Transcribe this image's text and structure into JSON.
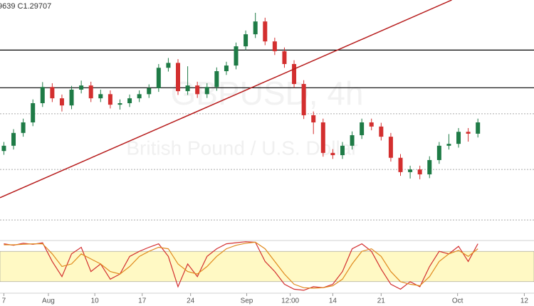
{
  "chart_data": [
    {
      "type": "candlestick",
      "title": "9639 C1.29707",
      "watermark": "GBPUSD, 4h",
      "subtitle": "British Pound / U.S. Dollar",
      "xlim": [
        -0.4,
        54.8
      ],
      "ylim": [
        1.2663,
        1.3296
      ],
      "up_color": "#1e7b46",
      "down_color": "#d32f2f",
      "open": [
        1.2895,
        1.2909,
        1.2943,
        1.2971,
        1.3022,
        1.3065,
        1.3035,
        1.3016,
        1.3058,
        1.3069,
        1.3035,
        1.3046,
        1.3018,
        1.3022,
        1.3035,
        1.3046,
        1.3062,
        1.3116,
        1.3129,
        1.3054,
        1.3069,
        1.3046,
        1.3065,
        1.3107,
        1.3122,
        1.3173,
        1.3205,
        1.3239,
        1.3186,
        1.316,
        1.3126,
        1.3073,
        1.299,
        1.2971,
        1.289,
        1.2884,
        1.2909,
        1.2937,
        1.2971,
        1.296,
        1.2933,
        1.2877,
        1.2839,
        1.2846,
        1.2833,
        1.2871,
        1.2909,
        1.2914,
        1.2946,
        1.2941
      ],
      "high": [
        1.2919,
        1.2953,
        1.2981,
        1.3032,
        1.3078,
        1.3075,
        1.3045,
        1.3068,
        1.3082,
        1.3079,
        1.3058,
        1.3056,
        1.3032,
        1.3045,
        1.3056,
        1.3072,
        1.3126,
        1.3142,
        1.3139,
        1.312,
        1.3079,
        1.3075,
        1.3117,
        1.3132,
        1.3183,
        1.3215,
        1.3262,
        1.3249,
        1.3196,
        1.317,
        1.3136,
        1.3083,
        1.3,
        1.2981,
        1.29,
        1.2919,
        1.2947,
        1.2981,
        1.2981,
        1.297,
        1.2943,
        1.2887,
        1.2856,
        1.2856,
        1.2881,
        1.2919,
        1.294,
        1.2956,
        1.2956,
        1.2981
      ],
      "low": [
        1.2885,
        1.2899,
        1.2933,
        1.2961,
        1.3012,
        1.3025,
        1.3,
        1.3006,
        1.3048,
        1.3025,
        1.3025,
        1.3008,
        1.3005,
        1.3012,
        1.3025,
        1.3036,
        1.3052,
        1.3106,
        1.3044,
        1.3044,
        1.3036,
        1.3036,
        1.3055,
        1.3097,
        1.3112,
        1.3163,
        1.3195,
        1.3176,
        1.315,
        1.3116,
        1.3063,
        1.298,
        1.294,
        1.288,
        1.2874,
        1.2874,
        1.2899,
        1.2927,
        1.295,
        1.2923,
        1.2867,
        1.2829,
        1.2822,
        1.282,
        1.2823,
        1.2861,
        1.2899,
        1.2904,
        1.292,
        1.2931
      ],
      "close": [
        1.2909,
        1.2943,
        1.2971,
        1.3022,
        1.3065,
        1.3035,
        1.3016,
        1.3058,
        1.3069,
        1.3035,
        1.3046,
        1.3018,
        1.3022,
        1.3035,
        1.3046,
        1.3062,
        1.3116,
        1.3129,
        1.3054,
        1.3069,
        1.3046,
        1.3065,
        1.3107,
        1.3122,
        1.3173,
        1.3205,
        1.3239,
        1.3186,
        1.316,
        1.3126,
        1.3073,
        1.299,
        1.2971,
        1.289,
        1.2884,
        1.2909,
        1.2937,
        1.2971,
        1.296,
        1.2933,
        1.2877,
        1.2839,
        1.2846,
        1.2833,
        1.2871,
        1.2909,
        1.2914,
        1.2946,
        1.2941,
        1.2971
      ],
      "levels": [
        1.3163,
        1.3063
      ],
      "level_color": "#000000",
      "dotted_levels": [
        1.2994,
        1.2846,
        1.2712
      ],
      "trendline": {
        "x": [
          -0.4,
          46.3
        ],
        "y": [
          1.2771,
          1.3296
        ],
        "color": "#b71c1c"
      }
    },
    {
      "type": "line",
      "xlim": [
        -0.4,
        54.8
      ],
      "ylim": [
        0,
        100
      ],
      "band": [
        20,
        80
      ],
      "band_color": "#fff9c4",
      "xticks": [
        {
          "value": 0,
          "label": "7"
        },
        {
          "value": 4.6,
          "label": "Aug"
        },
        {
          "value": 9.4,
          "label": "10"
        },
        {
          "value": 14.3,
          "label": "17"
        },
        {
          "value": 19.3,
          "label": "24"
        },
        {
          "value": 25.1,
          "label": "Sep"
        },
        {
          "value": 29.6,
          "label": "12:00"
        },
        {
          "value": 34.0,
          "label": "14"
        },
        {
          "value": 39.0,
          "label": "21"
        },
        {
          "value": 46.9,
          "label": "Oct"
        },
        {
          "value": 53.8,
          "label": "12"
        }
      ],
      "series": [
        {
          "color": "#d32f2f",
          "values": [
            95,
            92,
            96,
            94,
            97,
            60,
            30,
            75,
            88,
            40,
            55,
            25,
            35,
            70,
            80,
            88,
            95,
            70,
            10,
            55,
            30,
            70,
            85,
            95,
            97,
            99,
            98,
            60,
            40,
            15,
            5,
            3,
            10,
            8,
            15,
            40,
            85,
            95,
            80,
            45,
            15,
            5,
            20,
            10,
            50,
            80,
            75,
            90,
            60,
            95
          ]
        },
        {
          "color": "#e08a1e",
          "values": [
            93,
            93,
            94,
            95,
            95,
            75,
            50,
            55,
            75,
            65,
            55,
            40,
            35,
            50,
            70,
            80,
            88,
            85,
            55,
            40,
            35,
            50,
            70,
            85,
            92,
            96,
            98,
            85,
            60,
            35,
            15,
            8,
            7,
            8,
            12,
            25,
            55,
            80,
            85,
            70,
            40,
            20,
            15,
            12,
            30,
            60,
            75,
            82,
            70,
            85
          ]
        }
      ]
    }
  ]
}
